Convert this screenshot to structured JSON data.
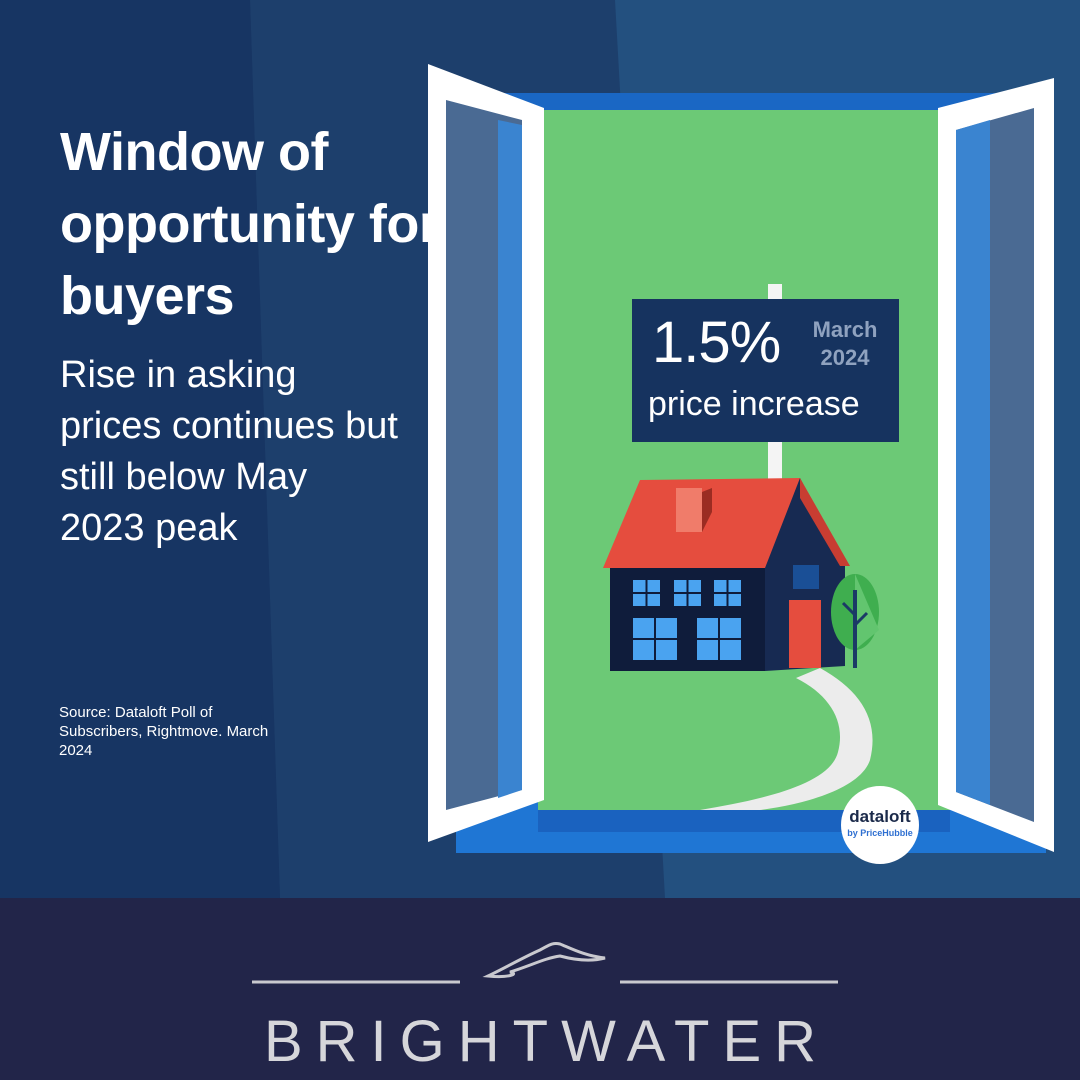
{
  "headline": "Window of opportunity for buyers",
  "subheadline": "Rise in asking prices continues but still below May 2023 peak",
  "source": "Source: Dataloft Poll of Subscribers, Rightmove. March 2024",
  "sign": {
    "percentage": "1.5%",
    "month": "March",
    "year": "2024",
    "caption": "price increase"
  },
  "badge": {
    "name": "dataloft",
    "tagline": "by PriceHubble"
  },
  "footer": {
    "brand": "BRIGHTWATER"
  },
  "colors": {
    "background": "#1b3a66",
    "lawn": "#6cc976",
    "roof": "#e54d3e",
    "house": "#0f1c3b",
    "window_frame": "#ffffff",
    "footer": "#222549"
  },
  "icons": [
    "house-illustration",
    "tree-icon",
    "bird-logo-icon"
  ]
}
